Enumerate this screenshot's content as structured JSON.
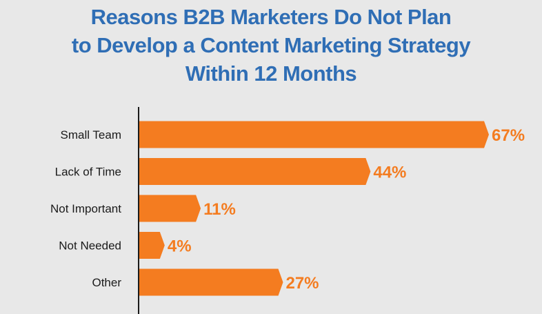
{
  "chart_data": {
    "type": "bar",
    "orientation": "horizontal",
    "title_lines": [
      "Reasons B2B Marketers Do Not Plan",
      "to Develop a Content Marketing Strategy",
      "Within 12 Months"
    ],
    "categories": [
      "Small Team",
      "Lack of Time",
      "Not Important",
      "Not Needed",
      "Other"
    ],
    "values": [
      67,
      44,
      11,
      4,
      27
    ],
    "value_labels": [
      "67%",
      "44%",
      "11%",
      "4%",
      "27%"
    ],
    "unit": "%",
    "xlim": [
      0,
      67
    ],
    "grid": false,
    "legend": "none"
  },
  "colors": {
    "background": "#e8e8e8",
    "title": "#2f6eb5",
    "bar": "#f47c20",
    "value_text": "#f47c20",
    "axis": "#1a1a1a",
    "category_text": "#1a1a1a"
  }
}
